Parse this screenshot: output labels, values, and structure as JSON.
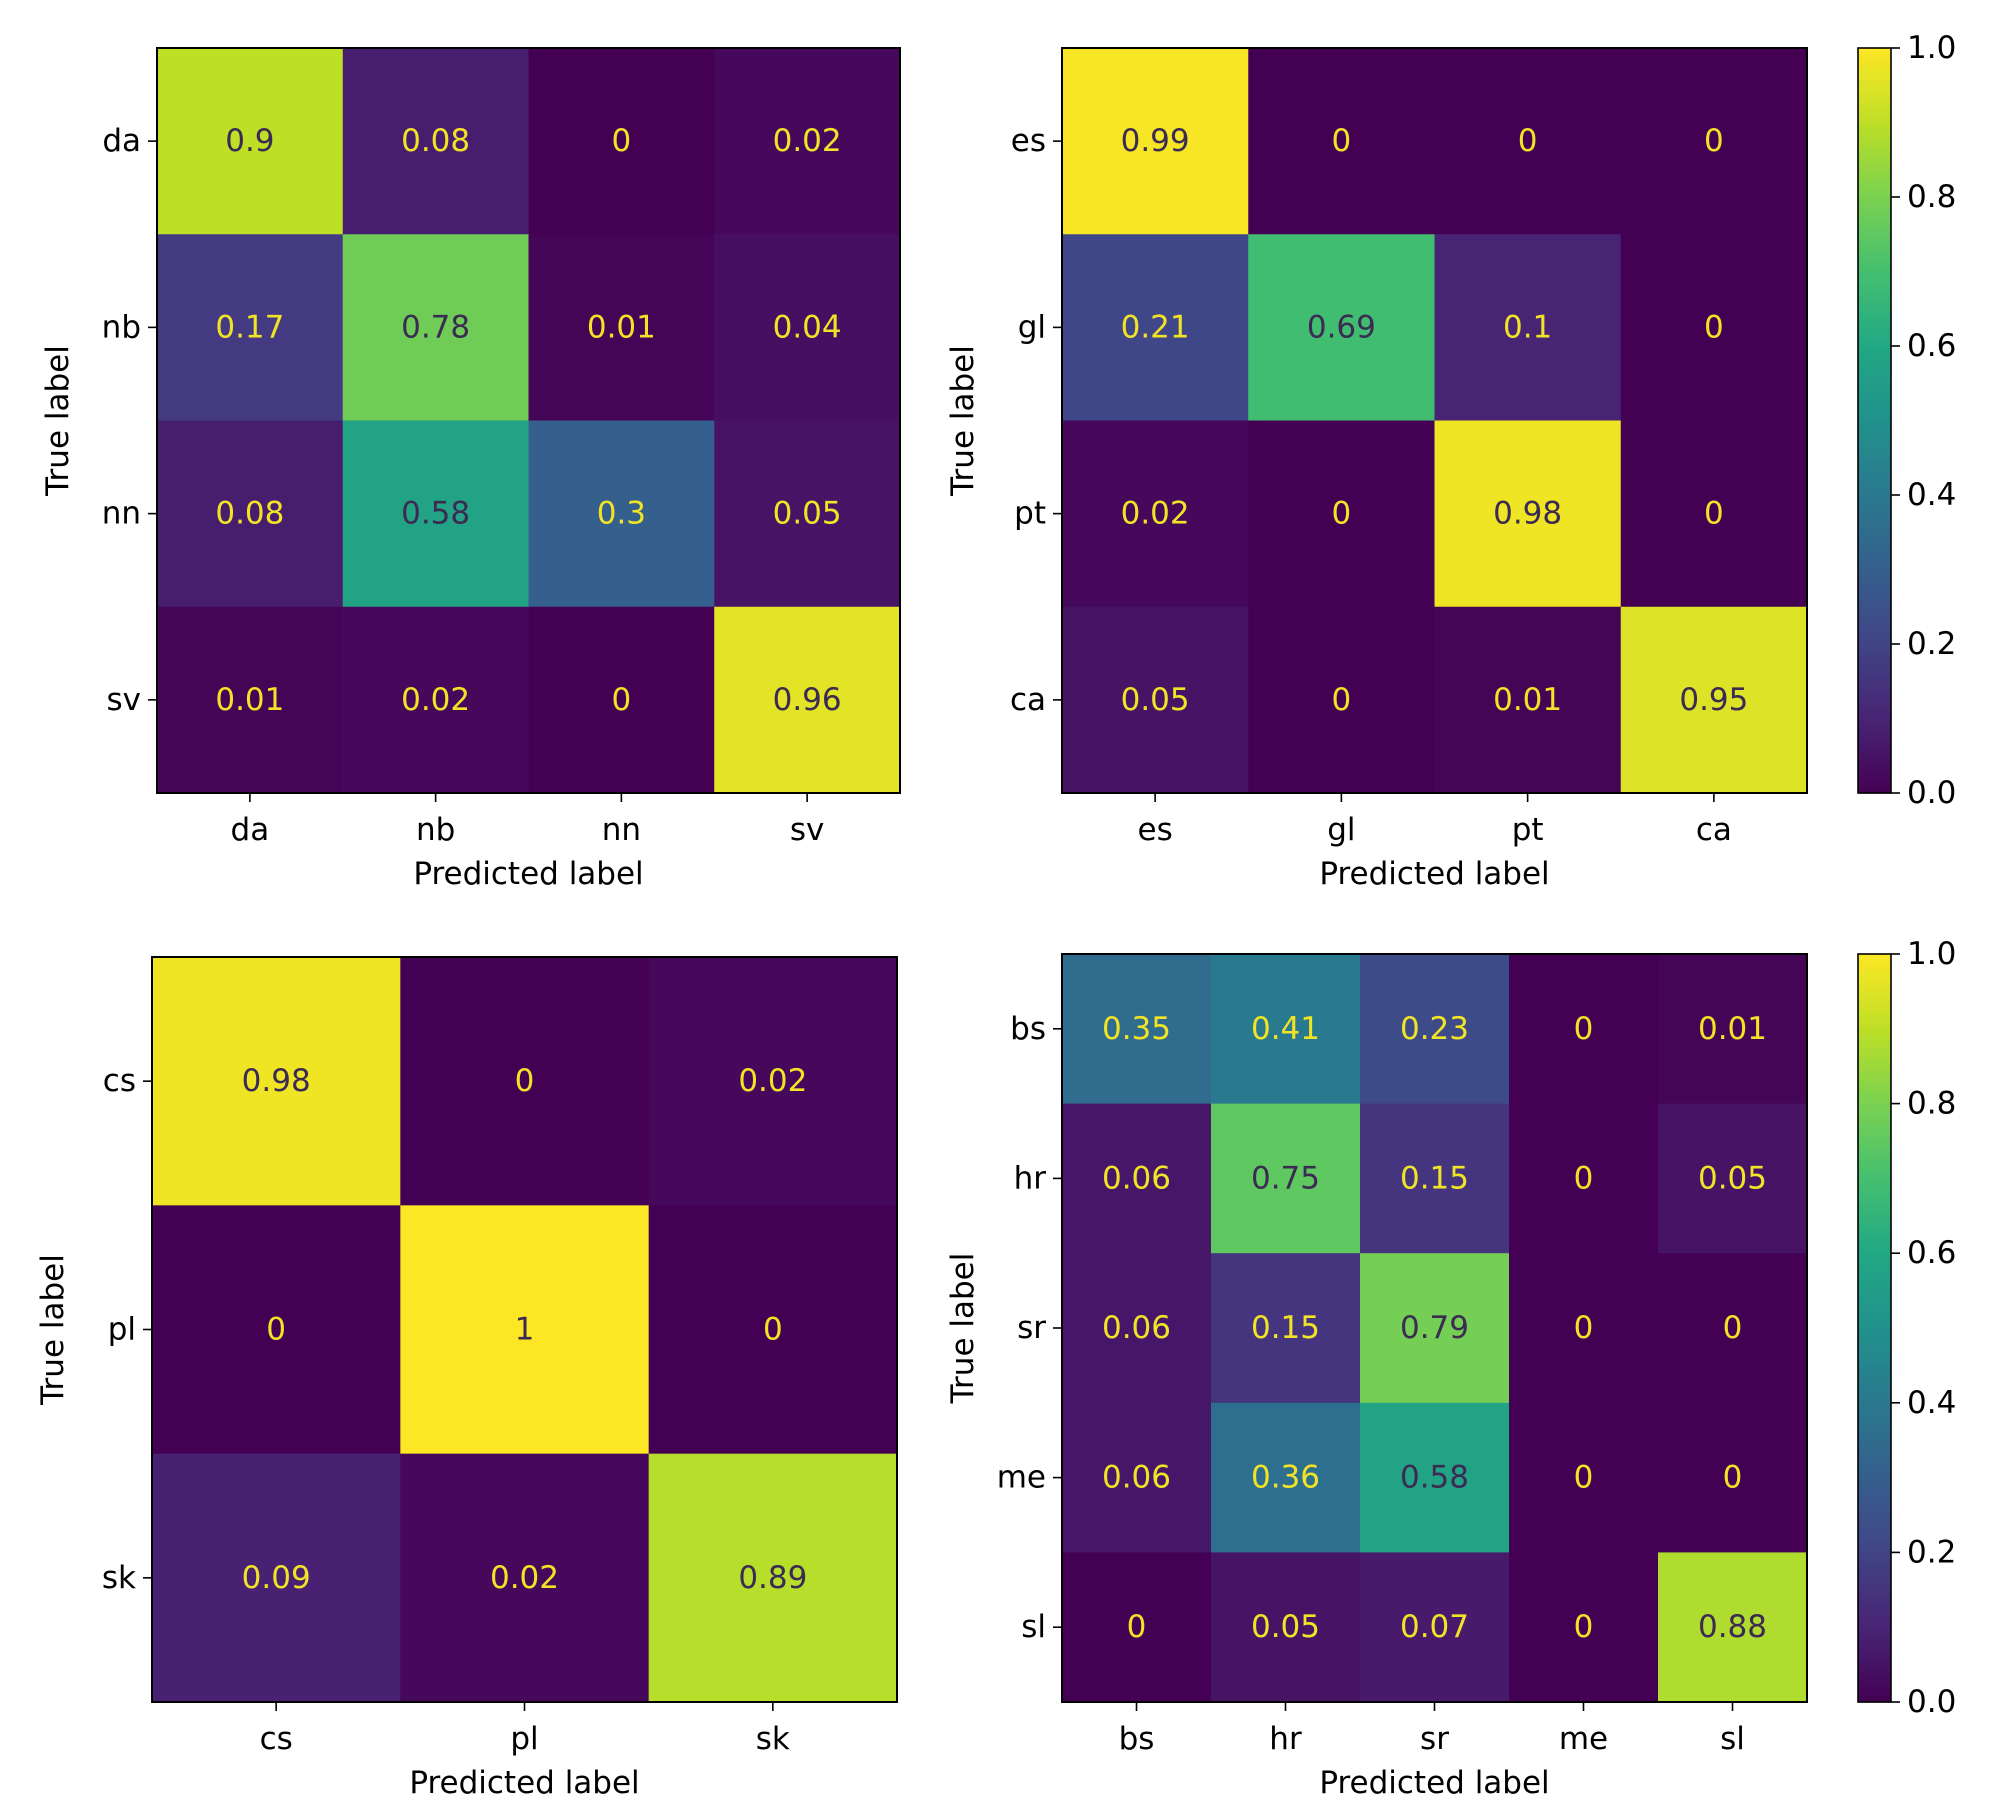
{
  "chart_data": [
    {
      "type": "heatmap",
      "title": "",
      "xlabel": "Predicted label",
      "ylabel": "True label",
      "x_categories": [
        "da",
        "nb",
        "nn",
        "sv"
      ],
      "y_categories": [
        "da",
        "nb",
        "nn",
        "sv"
      ],
      "values": [
        [
          0.9,
          0.08,
          0,
          0.02
        ],
        [
          0.17,
          0.78,
          0.01,
          0.04
        ],
        [
          0.08,
          0.58,
          0.3,
          0.05
        ],
        [
          0.01,
          0.02,
          0,
          0.96
        ]
      ],
      "value_labels": [
        [
          "0.9",
          "0.08",
          "0",
          "0.02"
        ],
        [
          "0.17",
          "0.78",
          "0.01",
          "0.04"
        ],
        [
          "0.08",
          "0.58",
          "0.3",
          "0.05"
        ],
        [
          "0.01",
          "0.02",
          "0",
          "0.96"
        ]
      ],
      "colormap": "viridis",
      "vmin": 0,
      "vmax": 1,
      "colorbar": false
    },
    {
      "type": "heatmap",
      "title": "",
      "xlabel": "Predicted label",
      "ylabel": "True label",
      "x_categories": [
        "es",
        "gl",
        "pt",
        "ca"
      ],
      "y_categories": [
        "es",
        "gl",
        "pt",
        "ca"
      ],
      "values": [
        [
          0.99,
          0,
          0,
          0
        ],
        [
          0.21,
          0.69,
          0.1,
          0
        ],
        [
          0.02,
          0,
          0.98,
          0
        ],
        [
          0.05,
          0,
          0.01,
          0.95
        ]
      ],
      "value_labels": [
        [
          "0.99",
          "0",
          "0",
          "0"
        ],
        [
          "0.21",
          "0.69",
          "0.1",
          "0"
        ],
        [
          "0.02",
          "0",
          "0.98",
          "0"
        ],
        [
          "0.05",
          "0",
          "0.01",
          "0.95"
        ]
      ],
      "colormap": "viridis",
      "vmin": 0,
      "vmax": 1,
      "colorbar": true,
      "colorbar_ticks": [
        "0.0",
        "0.2",
        "0.4",
        "0.6",
        "0.8",
        "1.0"
      ]
    },
    {
      "type": "heatmap",
      "title": "",
      "xlabel": "Predicted label",
      "ylabel": "True label",
      "x_categories": [
        "cs",
        "pl",
        "sk"
      ],
      "y_categories": [
        "cs",
        "pl",
        "sk"
      ],
      "values": [
        [
          0.98,
          0,
          0.02
        ],
        [
          0,
          1,
          0
        ],
        [
          0.09,
          0.02,
          0.89
        ]
      ],
      "value_labels": [
        [
          "0.98",
          "0",
          "0.02"
        ],
        [
          "0",
          "1",
          "0"
        ],
        [
          "0.09",
          "0.02",
          "0.89"
        ]
      ],
      "colormap": "viridis",
      "vmin": 0,
      "vmax": 1,
      "colorbar": false
    },
    {
      "type": "heatmap",
      "title": "",
      "xlabel": "Predicted label",
      "ylabel": "True label",
      "x_categories": [
        "bs",
        "hr",
        "sr",
        "me",
        "sl"
      ],
      "y_categories": [
        "bs",
        "hr",
        "sr",
        "me",
        "sl"
      ],
      "values": [
        [
          0.35,
          0.41,
          0.23,
          0,
          0.01
        ],
        [
          0.06,
          0.75,
          0.15,
          0,
          0.05
        ],
        [
          0.06,
          0.15,
          0.79,
          0,
          0
        ],
        [
          0.06,
          0.36,
          0.58,
          0,
          0
        ],
        [
          0,
          0.05,
          0.07,
          0,
          0.88
        ]
      ],
      "value_labels": [
        [
          "0.35",
          "0.41",
          "0.23",
          "0",
          "0.01"
        ],
        [
          "0.06",
          "0.75",
          "0.15",
          "0",
          "0.05"
        ],
        [
          "0.06",
          "0.15",
          "0.79",
          "0",
          "0"
        ],
        [
          "0.06",
          "0.36",
          "0.58",
          "0",
          "0"
        ],
        [
          "0",
          "0.05",
          "0.07",
          "0",
          "0.88"
        ]
      ],
      "colormap": "viridis",
      "vmin": 0,
      "vmax": 1,
      "colorbar": true,
      "colorbar_ticks": [
        "0.0",
        "0.2",
        "0.4",
        "0.6",
        "0.8",
        "1.0"
      ]
    }
  ]
}
